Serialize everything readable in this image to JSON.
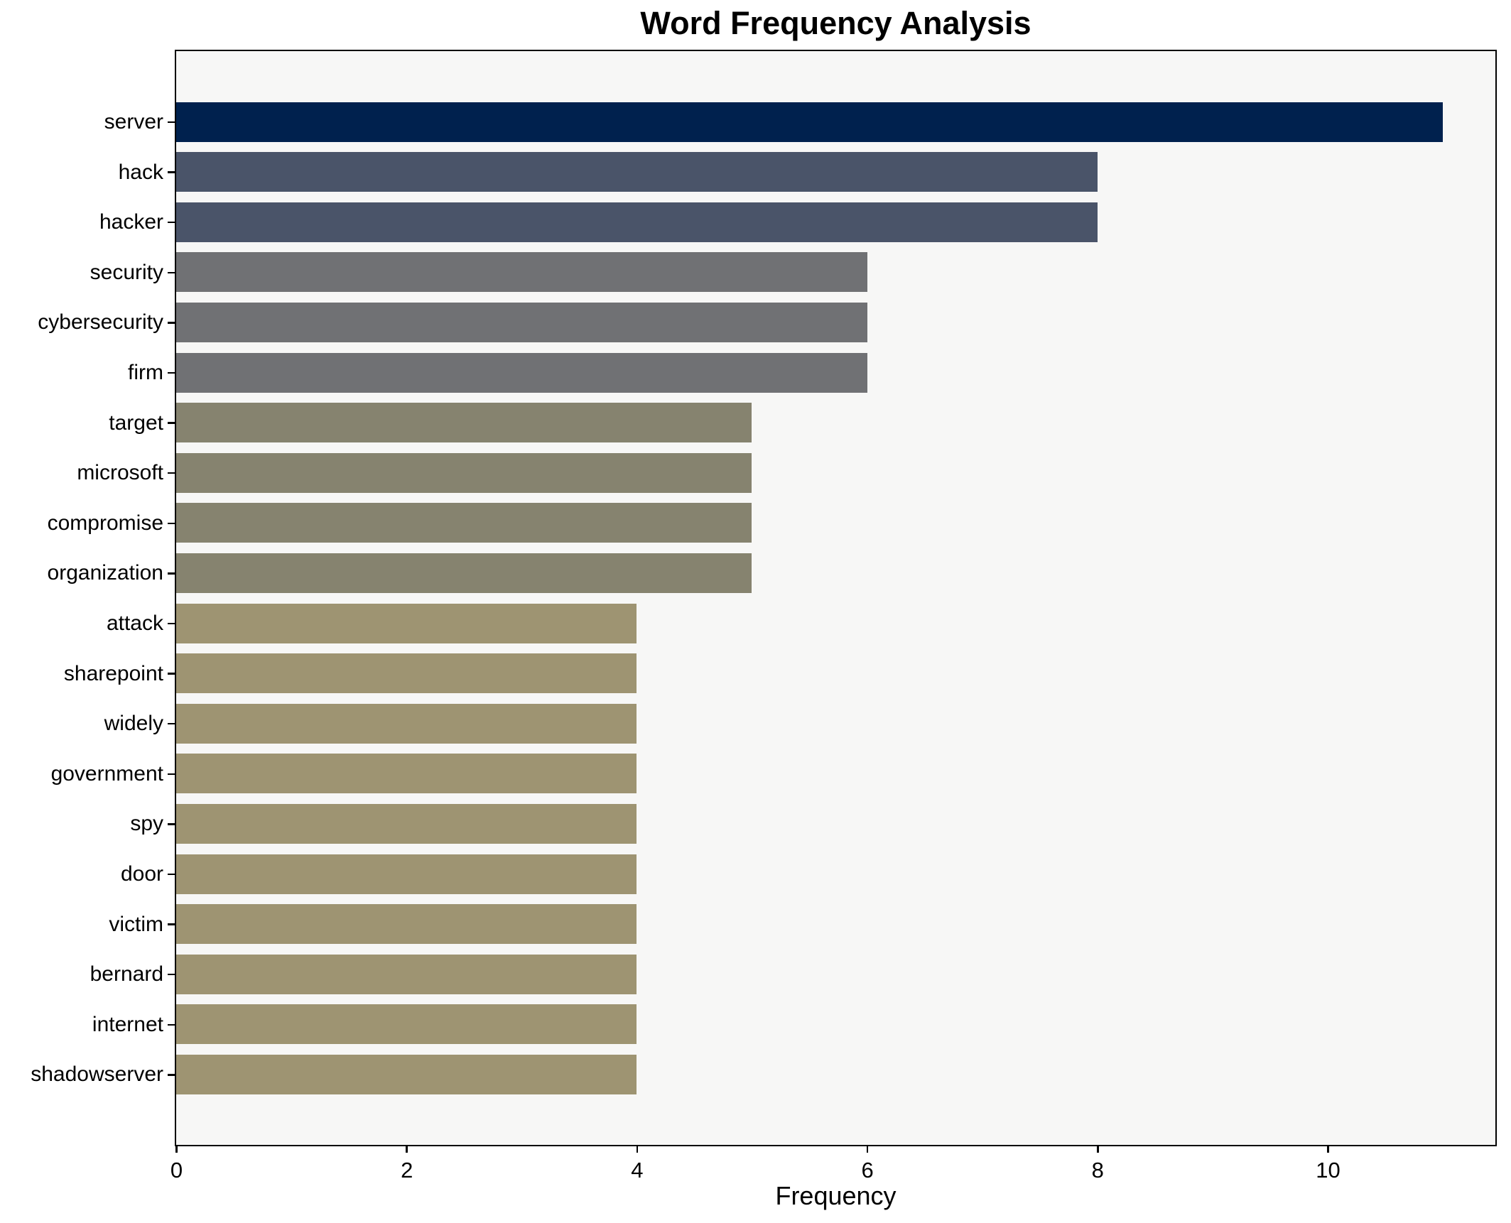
{
  "colors": {
    "figure_background": "#ffffff",
    "plot_background": "#f7f7f6",
    "axis": "#000000",
    "text": "#000000"
  },
  "chart_data": {
    "type": "bar",
    "orientation": "horizontal",
    "title": "Word Frequency Analysis",
    "xlabel": "Frequency",
    "ylabel": "",
    "grid": false,
    "legend": false,
    "xlim": [
      0,
      11.45
    ],
    "xticks": [
      0,
      2,
      4,
      6,
      8,
      10
    ],
    "categories": [
      "server",
      "hack",
      "hacker",
      "security",
      "cybersecurity",
      "firm",
      "target",
      "microsoft",
      "compromise",
      "organization",
      "attack",
      "sharepoint",
      "widely",
      "government",
      "spy",
      "door",
      "victim",
      "bernard",
      "internet",
      "shadowserver"
    ],
    "values": [
      11,
      8,
      8,
      6,
      6,
      6,
      5,
      5,
      5,
      5,
      4,
      4,
      4,
      4,
      4,
      4,
      4,
      4,
      4,
      4
    ],
    "bar_colors": [
      "#00214e",
      "#4a5469",
      "#4a5469",
      "#707174",
      "#707174",
      "#707174",
      "#86836f",
      "#86836f",
      "#86836f",
      "#86836f",
      "#9e9472",
      "#9e9472",
      "#9e9472",
      "#9e9472",
      "#9e9472",
      "#9e9472",
      "#9e9472",
      "#9e9472",
      "#9e9472",
      "#9e9472"
    ]
  }
}
